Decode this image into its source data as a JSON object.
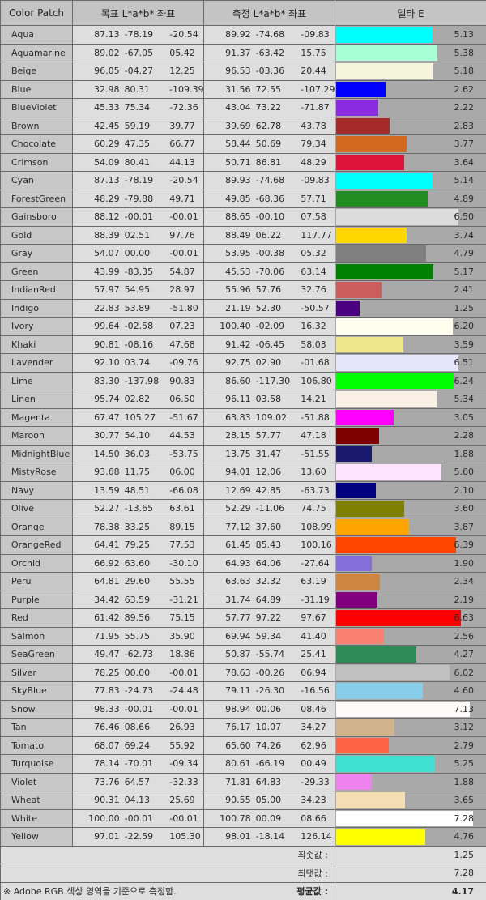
{
  "header": {
    "color_patch": "Color Patch",
    "target_lab": "목표 L*a*b* 좌표",
    "measured_lab": "측정 L*a*b* 좌표",
    "delta_e": "델타 E"
  },
  "rows": [
    {
      "name": "Aqua",
      "target": [
        "87.13",
        "-78.19",
        "-20.54"
      ],
      "measured": [
        "89.92",
        "-74.68",
        "-09.83"
      ],
      "delta": "5.13",
      "color": "#00FFFF"
    },
    {
      "name": "Aquamarine",
      "target": [
        "89.02",
        "-67.05",
        "05.42"
      ],
      "measured": [
        "91.37",
        "-63.42",
        "15.75"
      ],
      "delta": "5.38",
      "color": "#A8FFD6"
    },
    {
      "name": "Beige",
      "target": [
        "96.05",
        "-04.27",
        "12.25"
      ],
      "measured": [
        "96.53",
        "-03.36",
        "20.44"
      ],
      "delta": "5.18",
      "color": "#F5F5DC"
    },
    {
      "name": "Blue",
      "target": [
        "32.98",
        "80.31",
        "-109.39"
      ],
      "measured": [
        "31.56",
        "72.55",
        "-107.29"
      ],
      "delta": "2.62",
      "color": "#0000FF"
    },
    {
      "name": "BlueViolet",
      "target": [
        "45.33",
        "75.34",
        "-72.36"
      ],
      "measured": [
        "43.04",
        "73.22",
        "-71.87"
      ],
      "delta": "2.22",
      "color": "#8A2BE2"
    },
    {
      "name": "Brown",
      "target": [
        "42.45",
        "59.19",
        "39.77"
      ],
      "measured": [
        "39.69",
        "62.78",
        "43.78"
      ],
      "delta": "2.83",
      "color": "#A52A2A"
    },
    {
      "name": "Chocolate",
      "target": [
        "60.29",
        "47.35",
        "66.77"
      ],
      "measured": [
        "58.44",
        "50.69",
        "79.34"
      ],
      "delta": "3.77",
      "color": "#D2691E"
    },
    {
      "name": "Crimson",
      "target": [
        "54.09",
        "80.41",
        "44.13"
      ],
      "measured": [
        "50.71",
        "86.81",
        "48.29"
      ],
      "delta": "3.64",
      "color": "#DC143C"
    },
    {
      "name": "Cyan",
      "target": [
        "87.13",
        "-78.19",
        "-20.54"
      ],
      "measured": [
        "89.93",
        "-74.68",
        "-09.83"
      ],
      "delta": "5.14",
      "color": "#00FFFF"
    },
    {
      "name": "ForestGreen",
      "target": [
        "48.29",
        "-79.88",
        "49.71"
      ],
      "measured": [
        "49.85",
        "-68.36",
        "57.71"
      ],
      "delta": "4.89",
      "color": "#228B22"
    },
    {
      "name": "Gainsboro",
      "target": [
        "88.12",
        "-00.01",
        "-00.01"
      ],
      "measured": [
        "88.65",
        "-00.10",
        "07.58"
      ],
      "delta": "6.50",
      "color": "#DCDCDC"
    },
    {
      "name": "Gold",
      "target": [
        "88.39",
        "02.51",
        "97.76"
      ],
      "measured": [
        "88.49",
        "06.22",
        "117.77"
      ],
      "delta": "3.74",
      "color": "#FFD700"
    },
    {
      "name": "Gray",
      "target": [
        "54.07",
        "00.00",
        "-00.01"
      ],
      "measured": [
        "53.95",
        "-00.38",
        "05.32"
      ],
      "delta": "4.79",
      "color": "#808080"
    },
    {
      "name": "Green",
      "target": [
        "43.99",
        "-83.35",
        "54.87"
      ],
      "measured": [
        "45.53",
        "-70.06",
        "63.14"
      ],
      "delta": "5.17",
      "color": "#008000"
    },
    {
      "name": "IndianRed",
      "target": [
        "57.97",
        "54.95",
        "28.97"
      ],
      "measured": [
        "55.96",
        "57.76",
        "32.76"
      ],
      "delta": "2.41",
      "color": "#CD5C5C"
    },
    {
      "name": "Indigo",
      "target": [
        "22.83",
        "53.89",
        "-51.80"
      ],
      "measured": [
        "21.19",
        "52.30",
        "-50.57"
      ],
      "delta": "1.25",
      "color": "#4B0082"
    },
    {
      "name": "Ivory",
      "target": [
        "99.64",
        "-02.58",
        "07.23"
      ],
      "measured": [
        "100.40",
        "-02.09",
        "16.32"
      ],
      "delta": "6.20",
      "color": "#FFFFF0"
    },
    {
      "name": "Khaki",
      "target": [
        "90.81",
        "-08.16",
        "47.68"
      ],
      "measured": [
        "91.42",
        "-06.45",
        "58.03"
      ],
      "delta": "3.59",
      "color": "#F0E68C"
    },
    {
      "name": "Lavender",
      "target": [
        "92.10",
        "03.74",
        "-09.76"
      ],
      "measured": [
        "92.75",
        "02.90",
        "-01.68"
      ],
      "delta": "6.51",
      "color": "#E6E6FA"
    },
    {
      "name": "Lime",
      "target": [
        "83.30",
        "-137.98",
        "90.83"
      ],
      "measured": [
        "86.60",
        "-117.30",
        "106.80"
      ],
      "delta": "6.24",
      "color": "#00FF00"
    },
    {
      "name": "Linen",
      "target": [
        "95.74",
        "02.82",
        "06.50"
      ],
      "measured": [
        "96.11",
        "03.58",
        "14.21"
      ],
      "delta": "5.34",
      "color": "#FAF0E6"
    },
    {
      "name": "Magenta",
      "target": [
        "67.47",
        "105.27",
        "-51.67"
      ],
      "measured": [
        "63.83",
        "109.02",
        "-51.88"
      ],
      "delta": "3.05",
      "color": "#FF00FF"
    },
    {
      "name": "Maroon",
      "target": [
        "30.77",
        "54.10",
        "44.53"
      ],
      "measured": [
        "28.15",
        "57.77",
        "47.18"
      ],
      "delta": "2.28",
      "color": "#800000"
    },
    {
      "name": "MidnightBlue",
      "target": [
        "14.50",
        "36.03",
        "-53.75"
      ],
      "measured": [
        "13.75",
        "31.47",
        "-51.55"
      ],
      "delta": "1.88",
      "color": "#191970"
    },
    {
      "name": "MistyRose",
      "target": [
        "93.68",
        "11.75",
        "06.00"
      ],
      "measured": [
        "94.01",
        "12.06",
        "13.60"
      ],
      "delta": "5.60",
      "color": "#FFE4FF"
    },
    {
      "name": "Navy",
      "target": [
        "13.59",
        "48.51",
        "-66.08"
      ],
      "measured": [
        "12.69",
        "42.85",
        "-63.73"
      ],
      "delta": "2.10",
      "color": "#000080"
    },
    {
      "name": "Olive",
      "target": [
        "52.27",
        "-13.65",
        "63.61"
      ],
      "measured": [
        "52.29",
        "-11.06",
        "74.75"
      ],
      "delta": "3.60",
      "color": "#808000"
    },
    {
      "name": "Orange",
      "target": [
        "78.38",
        "33.25",
        "89.15"
      ],
      "measured": [
        "77.12",
        "37.60",
        "108.99"
      ],
      "delta": "3.87",
      "color": "#FFA500"
    },
    {
      "name": "OrangeRed",
      "target": [
        "64.41",
        "79.25",
        "77.53"
      ],
      "measured": [
        "61.45",
        "85.43",
        "100.16"
      ],
      "delta": "6.39",
      "color": "#FF4500"
    },
    {
      "name": "Orchid",
      "target": [
        "66.92",
        "63.60",
        "-30.10"
      ],
      "measured": [
        "64.93",
        "64.06",
        "-27.64"
      ],
      "delta": "1.90",
      "color": "#8470DA"
    },
    {
      "name": "Peru",
      "target": [
        "64.81",
        "29.60",
        "55.55"
      ],
      "measured": [
        "63.63",
        "32.32",
        "63.19"
      ],
      "delta": "2.34",
      "color": "#CD853F"
    },
    {
      "name": "Purple",
      "target": [
        "34.42",
        "63.59",
        "-31.21"
      ],
      "measured": [
        "31.74",
        "64.89",
        "-31.19"
      ],
      "delta": "2.19",
      "color": "#800080"
    },
    {
      "name": "Red",
      "target": [
        "61.42",
        "89.56",
        "75.15"
      ],
      "measured": [
        "57.77",
        "97.22",
        "97.67"
      ],
      "delta": "6.63",
      "color": "#FF0000"
    },
    {
      "name": "Salmon",
      "target": [
        "71.95",
        "55.75",
        "35.90"
      ],
      "measured": [
        "69.94",
        "59.34",
        "41.40"
      ],
      "delta": "2.56",
      "color": "#FA8072"
    },
    {
      "name": "SeaGreen",
      "target": [
        "49.47",
        "-62.73",
        "18.86"
      ],
      "measured": [
        "50.87",
        "-55.74",
        "25.41"
      ],
      "delta": "4.27",
      "color": "#2E8B57"
    },
    {
      "name": "Silver",
      "target": [
        "78.25",
        "00.00",
        "-00.01"
      ],
      "measured": [
        "78.63",
        "-00.26",
        "06.94"
      ],
      "delta": "6.02",
      "color": "#C0C0C0"
    },
    {
      "name": "SkyBlue",
      "target": [
        "77.83",
        "-24.73",
        "-24.48"
      ],
      "measured": [
        "79.11",
        "-26.30",
        "-16.56"
      ],
      "delta": "4.60",
      "color": "#87CEEB"
    },
    {
      "name": "Snow",
      "target": [
        "98.33",
        "-00.01",
        "-00.01"
      ],
      "measured": [
        "98.94",
        "00.06",
        "08.46"
      ],
      "delta": "7.13",
      "color": "#FFFAFA"
    },
    {
      "name": "Tan",
      "target": [
        "76.46",
        "08.66",
        "26.93"
      ],
      "measured": [
        "76.17",
        "10.07",
        "34.27"
      ],
      "delta": "3.12",
      "color": "#D2B48C"
    },
    {
      "name": "Tomato",
      "target": [
        "68.07",
        "69.24",
        "55.92"
      ],
      "measured": [
        "65.60",
        "74.26",
        "62.96"
      ],
      "delta": "2.79",
      "color": "#FF6347"
    },
    {
      "name": "Turquoise",
      "target": [
        "78.14",
        "-70.01",
        "-09.34"
      ],
      "measured": [
        "80.61",
        "-66.19",
        "00.49"
      ],
      "delta": "5.25",
      "color": "#40E0D0"
    },
    {
      "name": "Violet",
      "target": [
        "73.76",
        "64.57",
        "-32.33"
      ],
      "measured": [
        "71.81",
        "64.83",
        "-29.33"
      ],
      "delta": "1.88",
      "color": "#EE82EE"
    },
    {
      "name": "Wheat",
      "target": [
        "90.31",
        "04.13",
        "25.69"
      ],
      "measured": [
        "90.55",
        "05.00",
        "34.23"
      ],
      "delta": "3.65",
      "color": "#F5DEB3"
    },
    {
      "name": "White",
      "target": [
        "100.00",
        "-00.01",
        "-00.01"
      ],
      "measured": [
        "100.78",
        "00.09",
        "08.66"
      ],
      "delta": "7.28",
      "color": "#FFFFFF"
    },
    {
      "name": "Yellow",
      "target": [
        "97.01",
        "-22.59",
        "105.30"
      ],
      "measured": [
        "98.01",
        "-18.14",
        "126.14"
      ],
      "delta": "4.76",
      "color": "#FFFF00"
    }
  ],
  "footer": {
    "min_label": "최솟값 :",
    "min_value": "1.25",
    "max_label": "최댓값 :",
    "max_value": "7.28",
    "avg_label": "평균값 :",
    "avg_value": "4.17",
    "note": "※ Adobe RGB 색상 영역을 기준으로 측정함."
  },
  "chart_data": {
    "type": "bar",
    "title": "델타 E",
    "xlabel": "Color Patch",
    "ylabel": "델타 E",
    "categories": [
      "Aqua",
      "Aquamarine",
      "Beige",
      "Blue",
      "BlueViolet",
      "Brown",
      "Chocolate",
      "Crimson",
      "Cyan",
      "ForestGreen",
      "Gainsboro",
      "Gold",
      "Gray",
      "Green",
      "IndianRed",
      "Indigo",
      "Ivory",
      "Khaki",
      "Lavender",
      "Lime",
      "Linen",
      "Magenta",
      "Maroon",
      "MidnightBlue",
      "MistyRose",
      "Navy",
      "Olive",
      "Orange",
      "OrangeRed",
      "Orchid",
      "Peru",
      "Purple",
      "Red",
      "Salmon",
      "SeaGreen",
      "Silver",
      "SkyBlue",
      "Snow",
      "Tan",
      "Tomato",
      "Turquoise",
      "Violet",
      "Wheat",
      "White",
      "Yellow"
    ],
    "values": [
      5.13,
      5.38,
      5.18,
      2.62,
      2.22,
      2.83,
      3.77,
      3.64,
      5.14,
      4.89,
      6.5,
      3.74,
      4.79,
      5.17,
      2.41,
      1.25,
      6.2,
      3.59,
      6.51,
      6.24,
      5.34,
      3.05,
      2.28,
      1.88,
      5.6,
      2.1,
      3.6,
      3.87,
      6.39,
      1.9,
      2.34,
      2.19,
      6.63,
      2.56,
      4.27,
      6.02,
      4.6,
      7.13,
      3.12,
      2.79,
      5.25,
      1.88,
      3.65,
      7.28,
      4.76
    ],
    "orientation": "horizontal",
    "summary": {
      "min": 1.25,
      "max": 7.28,
      "mean": 4.17
    },
    "grid": false,
    "legend": "none",
    "columns": [
      "Color Patch",
      "목표 L*a*b* 좌표 (L, a, b)",
      "측정 L*a*b* 좌표 (L, a, b)",
      "델타 E"
    ]
  }
}
